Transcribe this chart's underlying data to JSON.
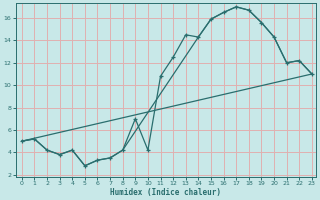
{
  "xlabel": "Humidex (Indice chaleur)",
  "bg_color": "#c8e8e8",
  "grid_color": "#e0b0b0",
  "line_color": "#2a6e6e",
  "xlim": [
    -0.5,
    23.3
  ],
  "ylim": [
    1.8,
    17.3
  ],
  "xticks": [
    0,
    1,
    2,
    3,
    4,
    5,
    6,
    7,
    8,
    9,
    10,
    11,
    12,
    13,
    14,
    15,
    16,
    17,
    18,
    19,
    20,
    21,
    22,
    23
  ],
  "yticks": [
    2,
    4,
    6,
    8,
    10,
    12,
    14,
    16
  ],
  "line1_x": [
    0,
    1,
    2,
    3,
    4,
    5,
    6,
    7,
    8,
    9,
    10,
    11,
    12,
    13,
    14,
    15,
    16,
    17,
    18,
    19,
    20,
    21,
    22,
    23
  ],
  "line1_y": [
    5.0,
    5.2,
    4.2,
    3.8,
    4.2,
    2.8,
    3.3,
    3.5,
    4.2,
    7.0,
    4.2,
    10.8,
    12.5,
    14.5,
    14.3,
    15.9,
    16.5,
    17.0,
    16.7,
    15.6,
    14.3,
    12.0,
    12.2,
    11.0
  ],
  "line2_x": [
    0,
    23
  ],
  "line2_y": [
    5.0,
    11.0
  ],
  "line3_x": [
    0,
    1,
    2,
    3,
    4,
    5,
    6,
    7,
    8,
    14,
    15,
    16,
    17,
    18,
    19,
    20,
    21,
    22,
    23
  ],
  "line3_y": [
    5.0,
    5.2,
    4.2,
    3.8,
    4.2,
    2.8,
    3.3,
    3.5,
    4.2,
    14.3,
    15.9,
    16.5,
    17.0,
    16.7,
    15.6,
    14.3,
    12.0,
    12.2,
    11.0
  ]
}
